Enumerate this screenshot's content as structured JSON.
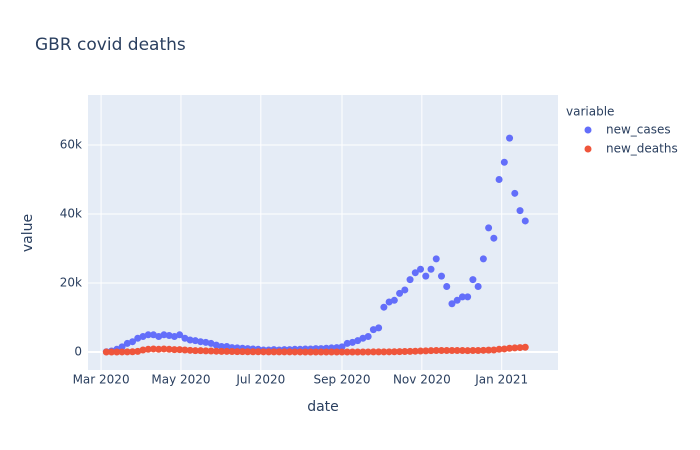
{
  "chart_data": {
    "type": "scatter",
    "title": "GBR covid deaths",
    "x_label": "date",
    "y_label": "value",
    "legend_title": "variable",
    "legend_position": "right",
    "grid": true,
    "xlim": [
      "2020-02-20",
      "2021-02-13"
    ],
    "xticks": [
      {
        "value": "2020-03-01",
        "label": "Mar 2020"
      },
      {
        "value": "2020-05-01",
        "label": "May 2020"
      },
      {
        "value": "2020-07-01",
        "label": "Jul 2020"
      },
      {
        "value": "2020-09-01",
        "label": "Sep 2020"
      },
      {
        "value": "2020-11-01",
        "label": "Nov 2020"
      },
      {
        "value": "2021-01-01",
        "label": "Jan 2021"
      }
    ],
    "ylim": [
      -5200,
      74500
    ],
    "yticks": [
      0,
      {
        "value": 20000,
        "label": "20k"
      },
      {
        "value": 40000,
        "label": "40k"
      },
      {
        "value": 60000,
        "label": "60k"
      }
    ],
    "x": [
      "2020-03-05",
      "2020-03-09",
      "2020-03-13",
      "2020-03-17",
      "2020-03-21",
      "2020-03-25",
      "2020-03-29",
      "2020-04-02",
      "2020-04-06",
      "2020-04-10",
      "2020-04-14",
      "2020-04-18",
      "2020-04-22",
      "2020-04-26",
      "2020-04-30",
      "2020-05-04",
      "2020-05-08",
      "2020-05-12",
      "2020-05-16",
      "2020-05-20",
      "2020-05-24",
      "2020-05-28",
      "2020-06-01",
      "2020-06-05",
      "2020-06-09",
      "2020-06-13",
      "2020-06-17",
      "2020-06-21",
      "2020-06-25",
      "2020-06-29",
      "2020-07-03",
      "2020-07-07",
      "2020-07-11",
      "2020-07-15",
      "2020-07-19",
      "2020-07-23",
      "2020-07-27",
      "2020-07-31",
      "2020-08-04",
      "2020-08-08",
      "2020-08-12",
      "2020-08-16",
      "2020-08-20",
      "2020-08-24",
      "2020-08-28",
      "2020-09-01",
      "2020-09-05",
      "2020-09-09",
      "2020-09-13",
      "2020-09-17",
      "2020-09-21",
      "2020-09-25",
      "2020-09-29",
      "2020-10-03",
      "2020-10-07",
      "2020-10-11",
      "2020-10-15",
      "2020-10-19",
      "2020-10-23",
      "2020-10-27",
      "2020-10-31",
      "2020-11-04",
      "2020-11-08",
      "2020-11-12",
      "2020-11-16",
      "2020-11-20",
      "2020-11-24",
      "2020-11-28",
      "2020-12-02",
      "2020-12-06",
      "2020-12-10",
      "2020-12-14",
      "2020-12-18",
      "2020-12-22",
      "2020-12-26",
      "2020-12-30",
      "2021-01-03",
      "2021-01-07",
      "2021-01-11",
      "2021-01-15",
      "2021-01-19"
    ],
    "series": [
      {
        "name": "new_cases",
        "color": "#636efa",
        "values": [
          100,
          300,
          800,
          1500,
          2500,
          3000,
          4000,
          4500,
          5000,
          5000,
          4500,
          5000,
          4800,
          4500,
          5000,
          4000,
          3500,
          3300,
          3000,
          2800,
          2500,
          2000,
          1600,
          1600,
          1300,
          1200,
          1100,
          1000,
          900,
          800,
          600,
          600,
          700,
          600,
          700,
          700,
          800,
          800,
          900,
          900,
          1000,
          1000,
          1100,
          1200,
          1300,
          1500,
          2500,
          2800,
          3300,
          4000,
          4500,
          6500,
          7000,
          13000,
          14500,
          15000,
          17000,
          18000,
          21000,
          23000,
          24000,
          22000,
          24000,
          27000,
          22000,
          19000,
          14000,
          15000,
          16000,
          16000,
          21000,
          19000,
          27000,
          36000,
          33000,
          50000,
          55000,
          62000,
          46000,
          41000,
          38000
        ]
      },
      {
        "name": "new_deaths",
        "color": "#ef553b",
        "values": [
          0,
          0,
          10,
          30,
          50,
          100,
          200,
          600,
          800,
          900,
          800,
          900,
          800,
          700,
          700,
          600,
          500,
          400,
          400,
          350,
          300,
          250,
          200,
          180,
          150,
          130,
          120,
          100,
          90,
          80,
          70,
          60,
          50,
          50,
          40,
          40,
          30,
          30,
          20,
          20,
          20,
          15,
          15,
          15,
          15,
          10,
          15,
          20,
          20,
          25,
          30,
          40,
          50,
          60,
          70,
          80,
          120,
          160,
          200,
          250,
          300,
          350,
          400,
          450,
          450,
          450,
          450,
          450,
          450,
          400,
          450,
          450,
          500,
          550,
          600,
          800,
          900,
          1100,
          1200,
          1300,
          1400
        ]
      }
    ]
  }
}
